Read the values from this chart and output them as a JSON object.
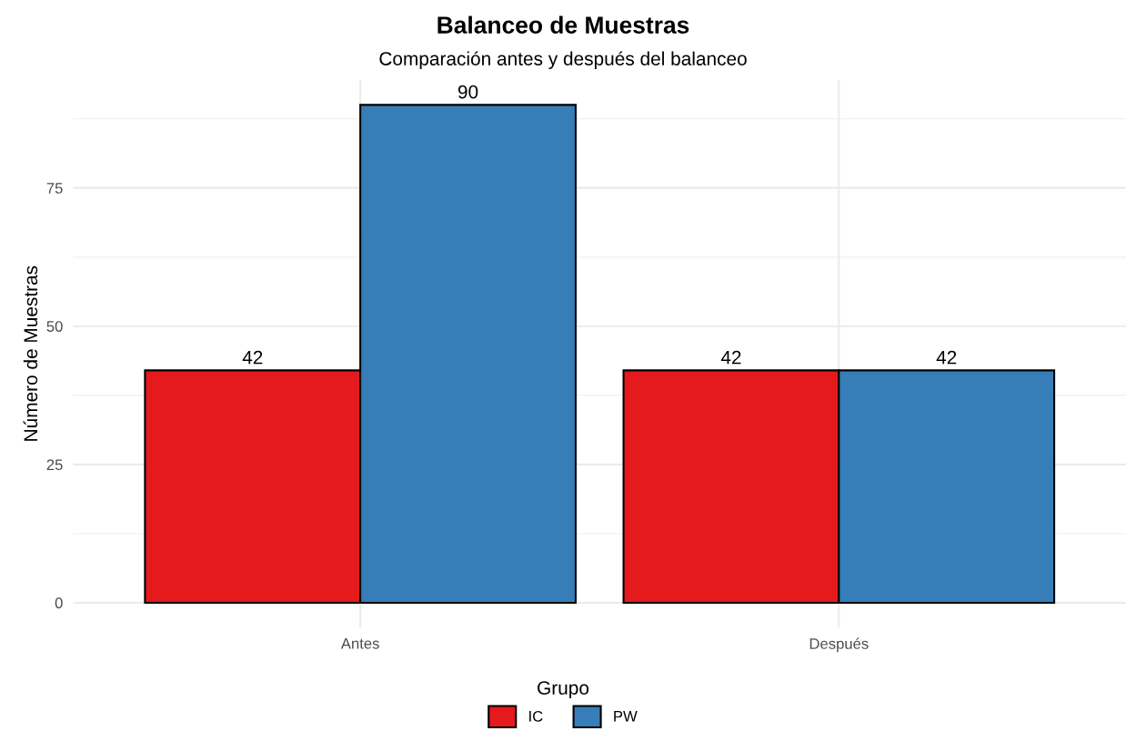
{
  "chart_data": {
    "type": "bar",
    "title": "Balanceo de Muestras",
    "subtitle": "Comparación antes y después del balanceo",
    "ylabel": "Número de Muestras",
    "legend_title": "Grupo",
    "categories": [
      "Antes",
      "Después"
    ],
    "series": [
      {
        "name": "IC",
        "color": "#e41a1c",
        "values": [
          42,
          42
        ]
      },
      {
        "name": "PW",
        "color": "#377eb8",
        "values": [
          90,
          42
        ]
      }
    ],
    "ylim": [
      -4.5,
      94.5
    ],
    "yticks": [
      0,
      25,
      50,
      75
    ],
    "grid": true,
    "legend": "bottom",
    "data_labels": true
  }
}
